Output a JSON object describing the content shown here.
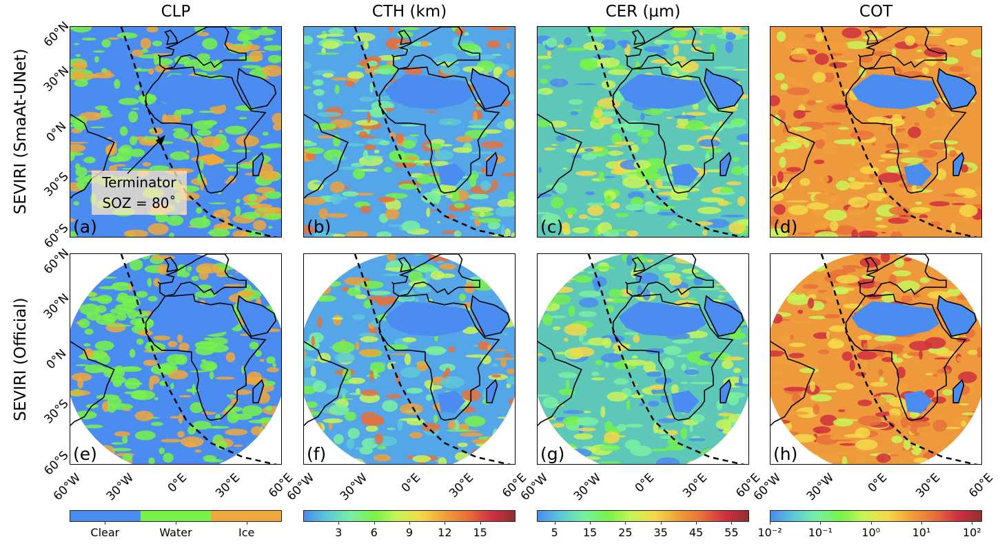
{
  "columns": [
    "CLP",
    "CTH (km)",
    "CER (µm)",
    "COT"
  ],
  "rows": [
    "SEVIRI (SmaAt-UNet)",
    "SEVIRI (Official)"
  ],
  "panel_letters": [
    [
      "(a)",
      "(b)",
      "(c)",
      "(d)"
    ],
    [
      "(e)",
      "(f)",
      "(g)",
      "(h)"
    ]
  ],
  "lat_labels": [
    "60°N",
    "30°N",
    "0°N",
    "30°S",
    "60°S"
  ],
  "lon_labels": [
    "60°W",
    "30°W",
    "0°E",
    "30°E",
    "60°E"
  ],
  "annotation": {
    "line1": "Terminator",
    "line2": "SOZ = 80˚"
  },
  "colorbars": [
    {
      "type": "categorical",
      "labels": [
        "Clear",
        "Water",
        "Ice"
      ],
      "colors": [
        "#4a8cf0",
        "#77f24a",
        "#f0a83c"
      ]
    },
    {
      "type": "continuous",
      "ticks": [
        "3",
        "6",
        "9",
        "12",
        "15"
      ],
      "range": [
        0,
        18
      ],
      "tick_values": [
        3,
        6,
        9,
        12,
        15
      ]
    },
    {
      "type": "continuous",
      "ticks": [
        "5",
        "15",
        "25",
        "35",
        "45",
        "55"
      ],
      "range": [
        0,
        60
      ],
      "tick_values": [
        5,
        15,
        25,
        35,
        45,
        55
      ]
    },
    {
      "type": "log",
      "ticks": [
        "10⁻²",
        "10⁻¹",
        "10⁰",
        "10¹",
        "10²"
      ],
      "range": [
        -2,
        2.2
      ],
      "tick_values": [
        -2,
        -1,
        0,
        1,
        2
      ]
    }
  ],
  "colormap": [
    "#4a8cf0",
    "#5ec8d8",
    "#7af0a0",
    "#77f24a",
    "#c8f458",
    "#f5d84a",
    "#f0a03a",
    "#e8703a",
    "#d03040",
    "#903030"
  ]
}
